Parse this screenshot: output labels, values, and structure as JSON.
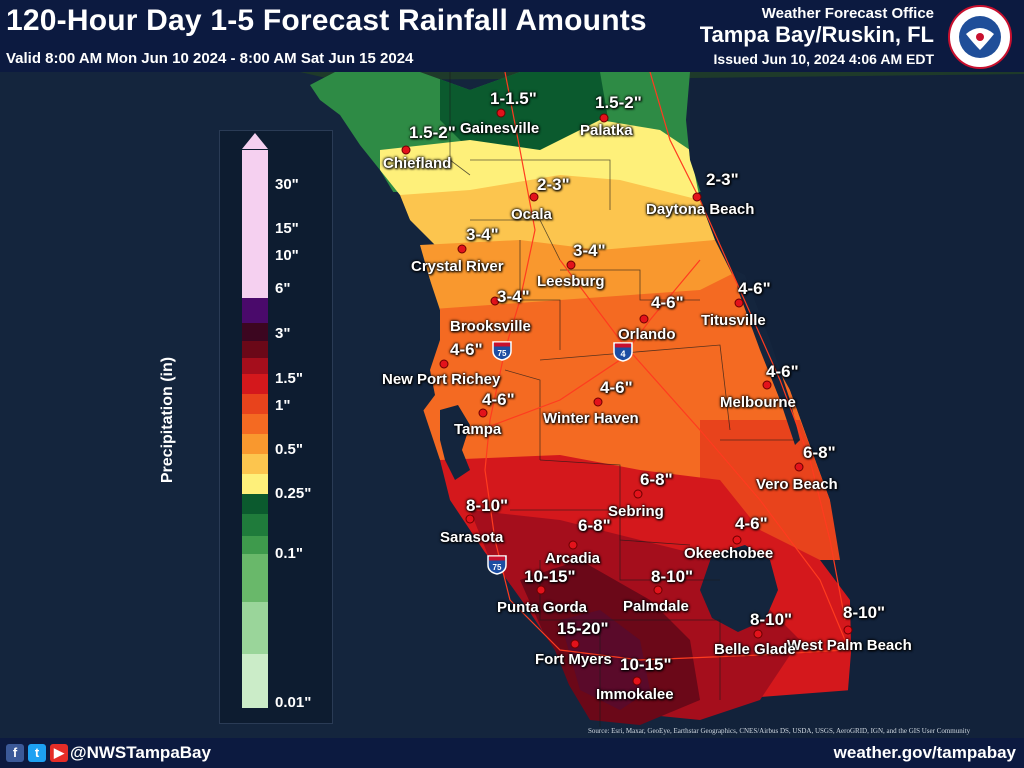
{
  "header": {
    "title": "120-Hour Day 1-5 Forecast Rainfall Amounts",
    "valid": "Valid 8:00 AM Mon Jun 10 2024 - 8:00 AM Sat Jun 15 2024",
    "wfo_label": "Weather Forecast Office",
    "office": "Tampa Bay/Ruskin, FL",
    "issued": "Issued Jun 10, 2024 4:06 AM EDT",
    "logo_text": "NATIONAL WEATHER SERVICE"
  },
  "legend": {
    "axis_label": "Precipitation (in)",
    "colors": [
      "#f5d0f0",
      "#4a0a6b",
      "#3c0620",
      "#6b0818",
      "#a50e1c",
      "#d4181c",
      "#e8431c",
      "#f46a22",
      "#f9982e",
      "#fcc54e",
      "#fef07a",
      "#0b5a2e",
      "#1f7b3b",
      "#3e9a4c",
      "#69b86a",
      "#9ad59a",
      "#cbecc8"
    ],
    "labels": [
      "30\"",
      "15\"",
      "10\"",
      "6\"",
      "3\"",
      "1.5\"",
      "1\"",
      "0.5\"",
      "0.25\"",
      "0.1\"",
      "0.01\""
    ]
  },
  "cities": [
    {
      "name": "Gainesville",
      "amount": "1-1.5\""
    },
    {
      "name": "Palatka",
      "amount": "1.5-2\""
    },
    {
      "name": "Chiefland",
      "amount": "1.5-2\""
    },
    {
      "name": "Ocala",
      "amount": "2-3\""
    },
    {
      "name": "Daytona Beach",
      "amount": "2-3\""
    },
    {
      "name": "Crystal River",
      "amount": "3-4\""
    },
    {
      "name": "Leesburg",
      "amount": "3-4\""
    },
    {
      "name": "Brooksville",
      "amount": "3-4\""
    },
    {
      "name": "Titusville",
      "amount": "4-6\""
    },
    {
      "name": "Orlando",
      "amount": "4-6\""
    },
    {
      "name": "New Port Richey",
      "amount": "4-6\""
    },
    {
      "name": "Melbourne",
      "amount": "4-6\""
    },
    {
      "name": "Winter Haven",
      "amount": "4-6\""
    },
    {
      "name": "Tampa",
      "amount": "4-6\""
    },
    {
      "name": "Vero Beach",
      "amount": "6-8\""
    },
    {
      "name": "Sebring",
      "amount": "6-8\""
    },
    {
      "name": "Sarasota",
      "amount": "8-10\""
    },
    {
      "name": "Arcadia",
      "amount": "6-8\""
    },
    {
      "name": "Okeechobee",
      "amount": "4-6\""
    },
    {
      "name": "Punta Gorda",
      "amount": "10-15\""
    },
    {
      "name": "Palmdale",
      "amount": "8-10\""
    },
    {
      "name": "West Palm Beach",
      "amount": "8-10\""
    },
    {
      "name": "Belle Glade",
      "amount": "8-10\""
    },
    {
      "name": "Fort Myers",
      "amount": "15-20\""
    },
    {
      "name": "Immokalee",
      "amount": "10-15\""
    }
  ],
  "highways": [
    "75",
    "4",
    "75"
  ],
  "attribution": "Source: Esri, Maxar, GeoEye, Earthstar Geographics, CNES/Airbus DS, USDA, USGS, AeroGRID, IGN, and the GIS User Community",
  "footer": {
    "social": [
      "facebook-icon",
      "twitter-icon",
      "youtube-icon"
    ],
    "handle": "@NWSTampaBay",
    "website": "weather.gov/tampabay"
  }
}
